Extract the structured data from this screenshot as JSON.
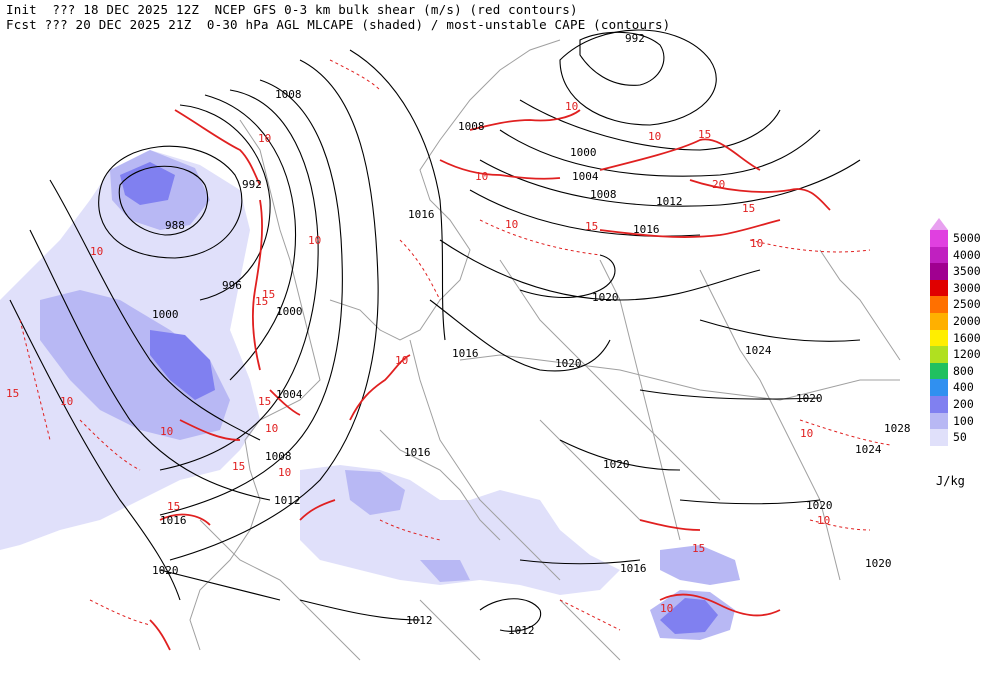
{
  "header": {
    "line1": "Init  ??? 18 DEC 2025 12Z  NCEP GFS 0-3 km bulk shear (m/s) (red contours)",
    "line2": "Fcst ??? 20 DEC 2025 21Z  0-30 hPa AGL MLCAPE (shaded) / most-unstable CAPE (contours)"
  },
  "legend": {
    "units": "J/kg",
    "levels": [
      {
        "label": "5000",
        "color": "#e040e0"
      },
      {
        "label": "4000",
        "color": "#c020c0"
      },
      {
        "label": "3500",
        "color": "#a00090"
      },
      {
        "label": "3000",
        "color": "#e00000"
      },
      {
        "label": "2500",
        "color": "#ff7000"
      },
      {
        "label": "2000",
        "color": "#ffb000"
      },
      {
        "label": "1600",
        "color": "#ffee00"
      },
      {
        "label": "1200",
        "color": "#b0e020"
      },
      {
        "label": "800",
        "color": "#20c060"
      },
      {
        "label": "400",
        "color": "#3090f0"
      },
      {
        "label": "200",
        "color": "#8080f0"
      },
      {
        "label": "100",
        "color": "#b8b8f4"
      },
      {
        "label": "50",
        "color": "#e0e0fa"
      }
    ]
  },
  "isobar_labels": [
    "992",
    "1008",
    "1008",
    "1000",
    "1004",
    "1008",
    "1012",
    "1016",
    "992",
    "988",
    "996",
    "1000",
    "1000",
    "1004",
    "1008",
    "1012",
    "1016",
    "1020",
    "1016",
    "1016",
    "1020",
    "1020",
    "1020",
    "1024",
    "1020",
    "1028",
    "1024",
    "1020",
    "1020",
    "1016",
    "1016",
    "1012",
    "1012"
  ],
  "shear_labels": [
    "10",
    "15",
    "10",
    "15",
    "20",
    "15",
    "10",
    "15",
    "10",
    "15",
    "10",
    "10",
    "10",
    "15",
    "15",
    "10",
    "10",
    "10",
    "10",
    "10",
    "15",
    "10",
    "10",
    "15",
    "10",
    "10",
    "15"
  ],
  "colors": {
    "isobar": "#000000",
    "shear": "#e02020",
    "border": "#a0a0a0"
  }
}
